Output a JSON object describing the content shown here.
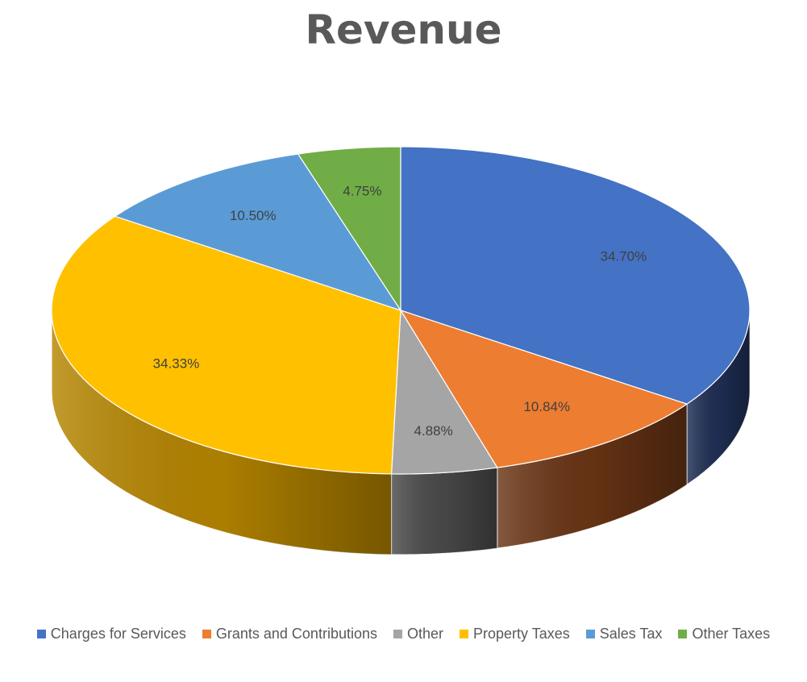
{
  "chart_data": {
    "type": "pie",
    "title": "Revenue",
    "legend_position": "bottom",
    "slices": [
      {
        "name": "Charges for Services",
        "value": 34.7,
        "label": "34.70%",
        "color": "#4472C4",
        "side_color": "#1F2F55"
      },
      {
        "name": "Grants and Contributions",
        "value": 10.84,
        "label": "10.84%",
        "color": "#ED7D31",
        "side_color": "#6A3515"
      },
      {
        "name": "Other",
        "value": 4.88,
        "label": "4.88%",
        "color": "#A5A5A5",
        "side_color": "#4A4A4A"
      },
      {
        "name": "Property Taxes",
        "value": 34.33,
        "label": "34.33%",
        "color": "#FFC000",
        "side_color": "#B58500"
      },
      {
        "name": "Sales Tax",
        "value": 10.5,
        "label": "10.50%",
        "color": "#5B9BD5",
        "side_color": "#2E5A82"
      },
      {
        "name": "Other Taxes",
        "value": 4.75,
        "label": "4.75%",
        "color": "#70AD47",
        "side_color": "#3D6426"
      }
    ]
  }
}
